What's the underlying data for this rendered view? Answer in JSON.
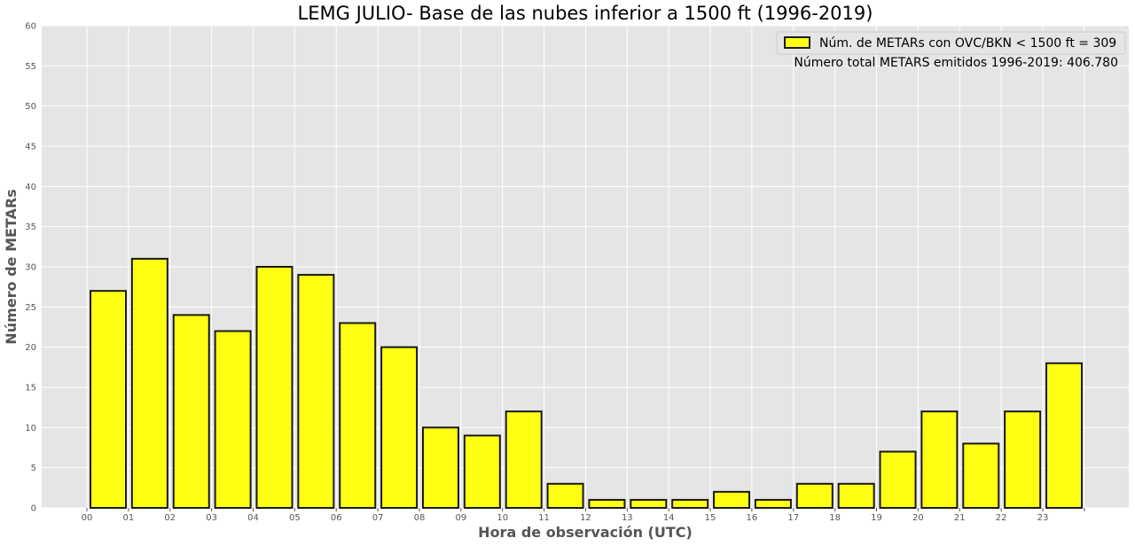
{
  "chart_data": {
    "type": "bar",
    "title": "LEMG JULIO- Base de las nubes inferior a 1500 ft (1996-2019)",
    "xlabel": "Hora de observación (UTC)",
    "ylabel": "Número de METARs",
    "categories": [
      "00",
      "01",
      "02",
      "03",
      "04",
      "05",
      "06",
      "07",
      "08",
      "09",
      "10",
      "11",
      "12",
      "13",
      "14",
      "15",
      "16",
      "17",
      "18",
      "19",
      "20",
      "21",
      "22",
      "23"
    ],
    "series": [
      {
        "name": "Núm. de METARs con OVC/BKN < 1500 ft = 309",
        "values": [
          27,
          31,
          24,
          22,
          30,
          29,
          23,
          20,
          10,
          9,
          12,
          3,
          1,
          1,
          1,
          2,
          1,
          3,
          3,
          7,
          12,
          8,
          12,
          18
        ]
      }
    ],
    "ylim": [
      0,
      60
    ],
    "yticks": [
      0,
      5,
      10,
      15,
      20,
      25,
      30,
      35,
      40,
      45,
      50,
      55,
      60
    ],
    "grid": true,
    "legend_position": "top-right",
    "annotation": "Número total METARS emitidos 1996-2019: 406.780",
    "colors": {
      "bar_fill": "#ffff14",
      "bar_edge": "#1a1a1a",
      "plot_background": "#e5e5e5",
      "grid": "#ffffff"
    }
  }
}
